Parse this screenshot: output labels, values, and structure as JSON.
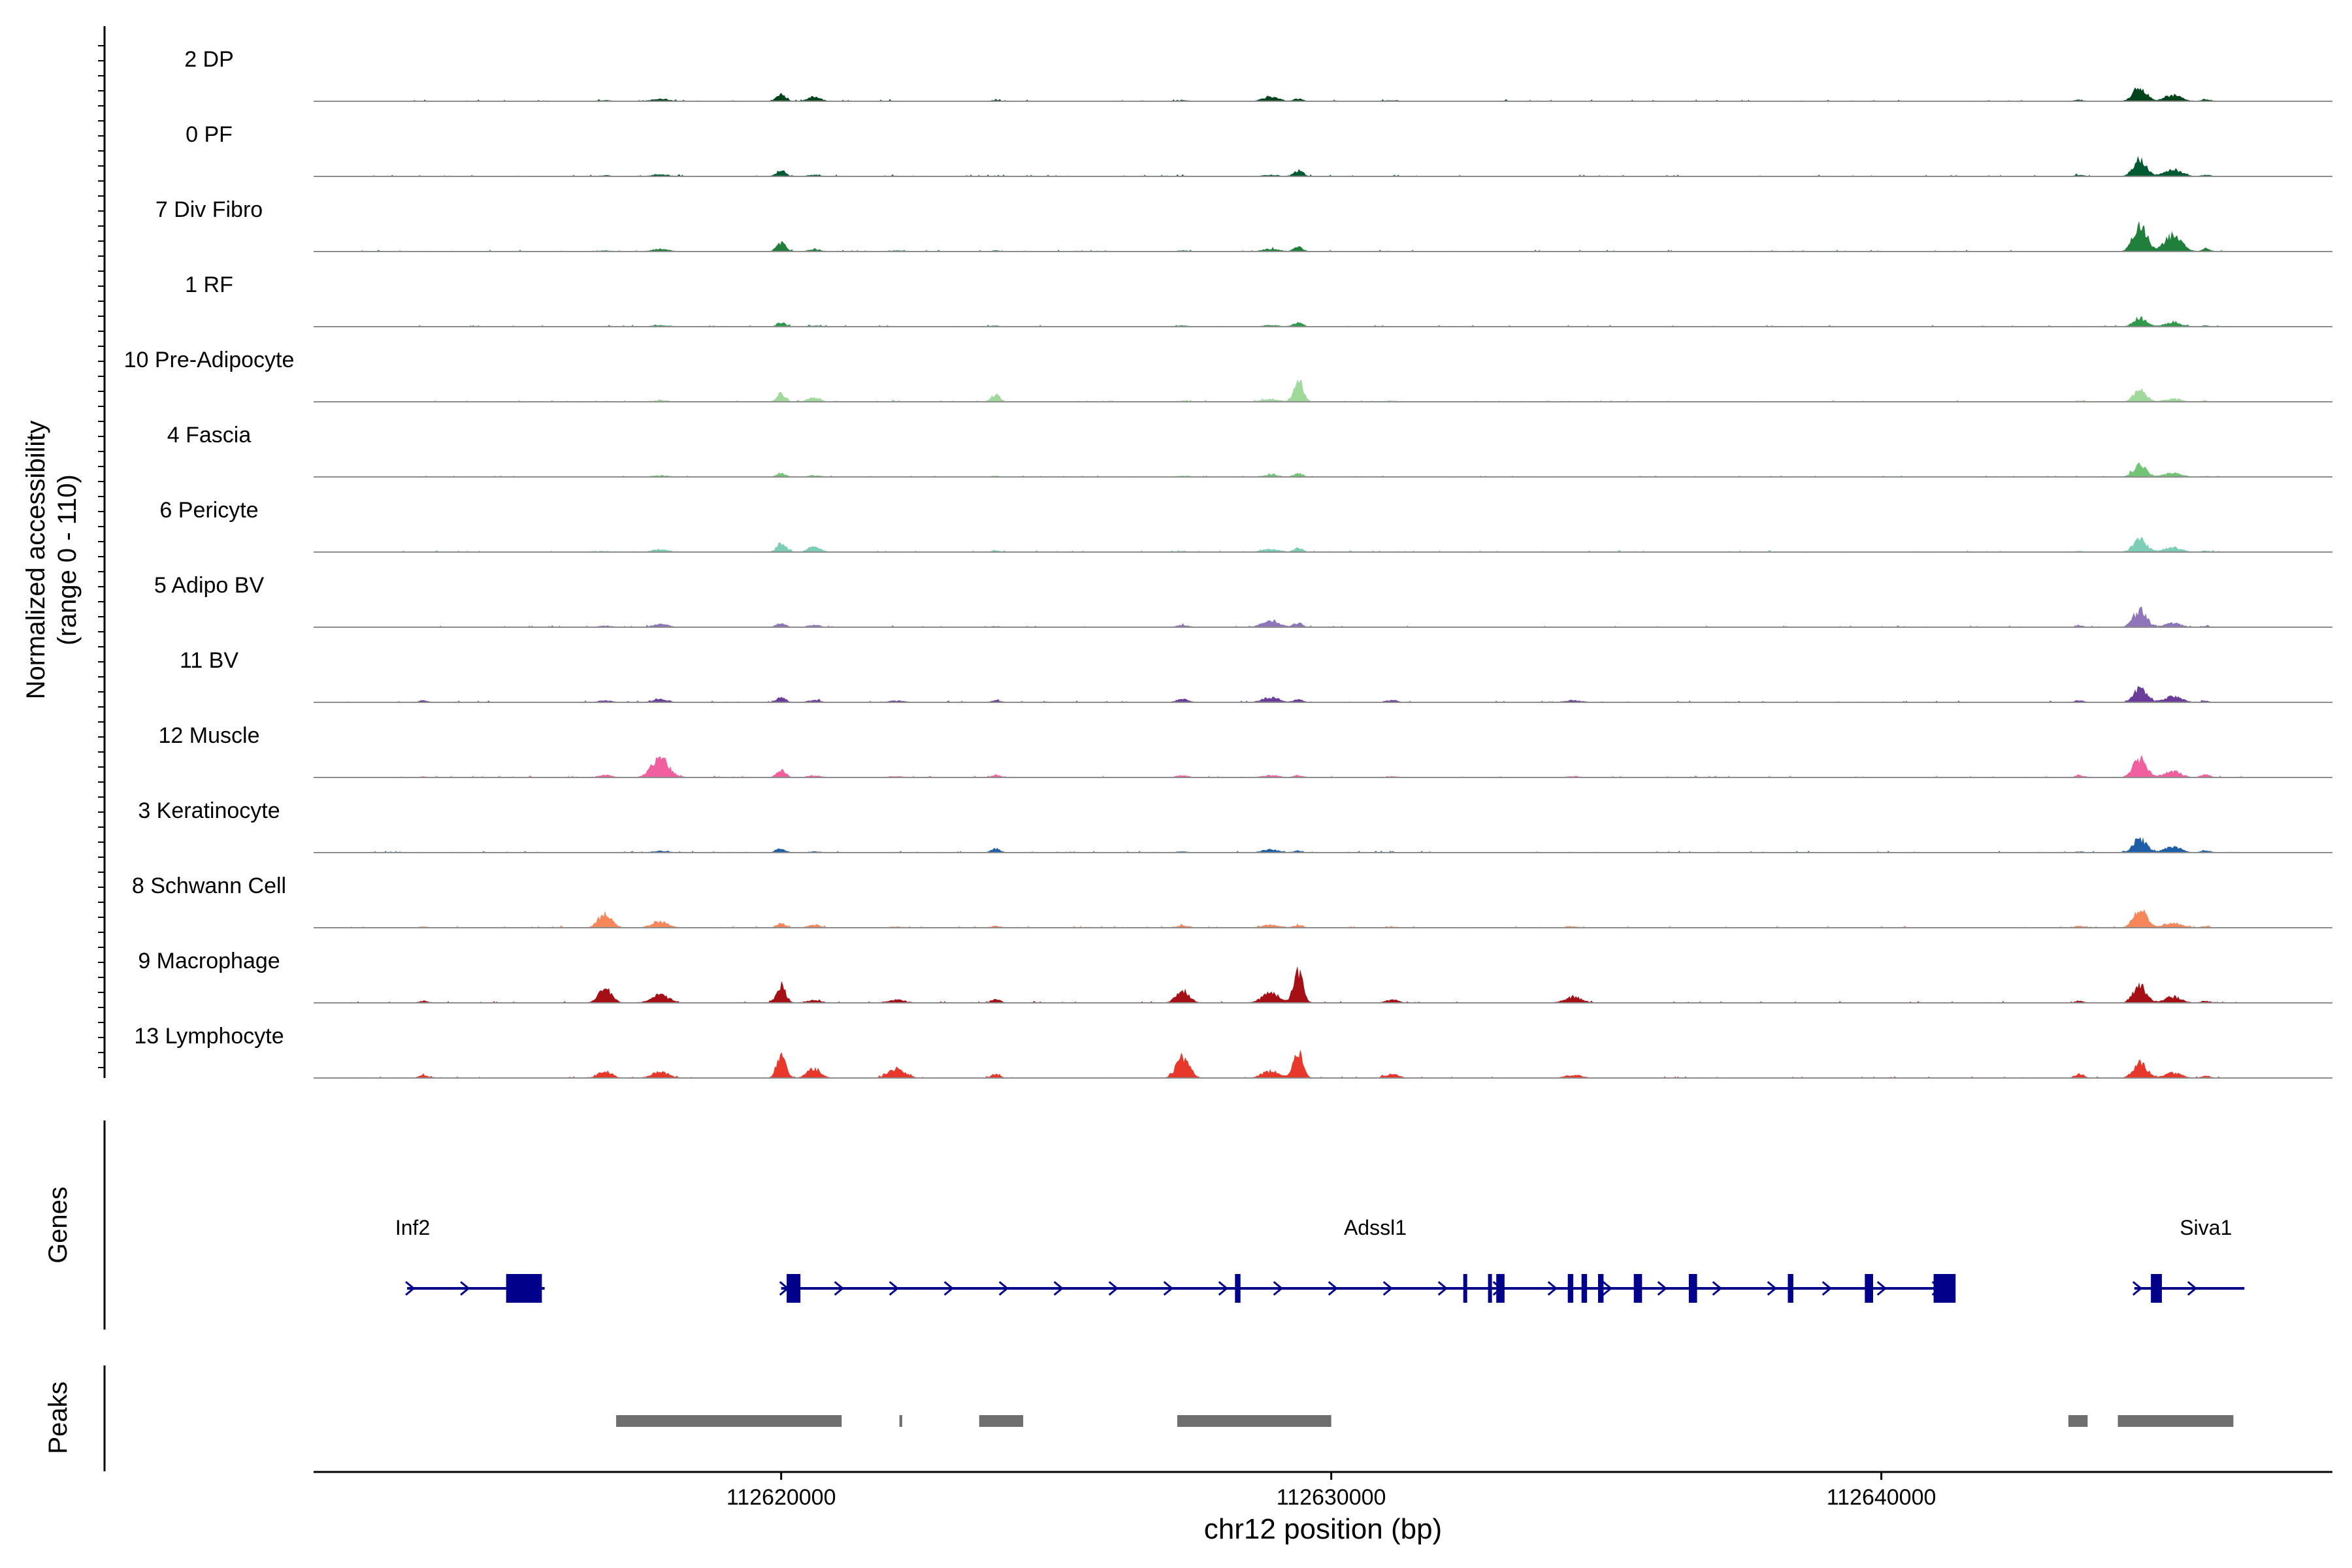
{
  "chart_data": {
    "type": "area",
    "title": "",
    "region": {
      "chrom": "chr12",
      "start": 112611500,
      "end": 112648200
    },
    "xlabel": "chr12 position (bp)",
    "xticks": [
      112620000,
      112630000,
      112640000
    ],
    "xtick_labels": [
      "112620000",
      "112630000",
      "112640000"
    ],
    "ylabel_lines": [
      "Normalized accessibility",
      "(range 0 - 110)"
    ],
    "yrange": [
      0,
      110
    ],
    "peak_centers": [
      112613500,
      112616800,
      112617800,
      112620000,
      112620600,
      112622100,
      112623900,
      112627300,
      112628900,
      112629400,
      112631100,
      112634400,
      112643600,
      112644700,
      112645300,
      112645900
    ],
    "series": [
      {
        "name": "2 DP",
        "color": "#00441b",
        "span": [
          112612500,
          112646800
        ],
        "values": [
          0,
          2,
          5,
          14,
          8,
          1,
          2,
          2,
          8,
          5,
          2,
          1,
          3,
          28,
          12,
          4
        ]
      },
      {
        "name": "0 PF",
        "color": "#005a32",
        "span": [
          112612500,
          112646800
        ],
        "values": [
          0,
          2,
          4,
          12,
          3,
          1,
          1,
          1,
          3,
          12,
          1,
          0,
          3,
          32,
          14,
          3
        ]
      },
      {
        "name": "7 Div Fibro",
        "color": "#1f7f3b",
        "span": [
          112612000,
          112646500
        ],
        "values": [
          1,
          2,
          5,
          18,
          4,
          2,
          2,
          2,
          5,
          9,
          1,
          0,
          1,
          55,
          32,
          5
        ]
      },
      {
        "name": "1 RF",
        "color": "#319a4a",
        "span": [
          112613000,
          112646400
        ],
        "values": [
          0,
          1,
          3,
          8,
          2,
          1,
          2,
          2,
          3,
          8,
          0,
          0,
          1,
          18,
          8,
          2
        ]
      },
      {
        "name": "10 Pre-Adipocyte",
        "color": "#a0d99b",
        "span": [
          112613000,
          112646200
        ],
        "values": [
          0,
          1,
          3,
          16,
          8,
          1,
          14,
          2,
          5,
          45,
          2,
          1,
          2,
          22,
          6,
          2
        ]
      },
      {
        "name": "4 Fascia",
        "color": "#74c476",
        "span": [
          112613000,
          112646400
        ],
        "values": [
          0,
          1,
          3,
          7,
          3,
          1,
          2,
          2,
          4,
          7,
          1,
          0,
          1,
          24,
          8,
          2
        ]
      },
      {
        "name": "6 Pericyte",
        "color": "#7ccdb6",
        "span": [
          112612800,
          112646300
        ],
        "values": [
          0,
          2,
          5,
          18,
          10,
          1,
          3,
          2,
          6,
          8,
          1,
          0,
          2,
          26,
          10,
          3
        ]
      },
      {
        "name": "5 Adipo BV",
        "color": "#8f76ba",
        "span": [
          112613000,
          112646000
        ],
        "values": [
          0,
          3,
          6,
          8,
          4,
          1,
          2,
          4,
          14,
          8,
          1,
          0,
          3,
          34,
          8,
          2
        ]
      },
      {
        "name": "11 BV",
        "color": "#6a3d9a",
        "span": [
          112612000,
          112646000
        ],
        "values": [
          4,
          4,
          6,
          10,
          4,
          3,
          4,
          6,
          10,
          6,
          4,
          4,
          4,
          28,
          12,
          3
        ]
      },
      {
        "name": "12 Muscle",
        "color": "#f0609e",
        "span": [
          112613000,
          112646600
        ],
        "values": [
          2,
          5,
          38,
          14,
          4,
          2,
          5,
          4,
          4,
          4,
          2,
          2,
          4,
          38,
          12,
          6
        ]
      },
      {
        "name": "3 Keratinocyte",
        "color": "#1f5fa8",
        "span": [
          112612500,
          112646600
        ],
        "values": [
          0,
          1,
          3,
          8,
          2,
          1,
          8,
          2,
          6,
          4,
          1,
          1,
          2,
          28,
          12,
          4
        ]
      },
      {
        "name": "8 Schwann Cell",
        "color": "#f7875a",
        "span": [
          112612000,
          112646500
        ],
        "values": [
          2,
          30,
          12,
          8,
          6,
          2,
          4,
          4,
          6,
          5,
          2,
          2,
          4,
          38,
          10,
          3
        ]
      },
      {
        "name": "9 Macrophage",
        "color": "#a50f15",
        "span": [
          112612000,
          112646500
        ],
        "values": [
          4,
          30,
          16,
          34,
          6,
          6,
          8,
          24,
          20,
          62,
          6,
          12,
          4,
          34,
          12,
          4
        ]
      },
      {
        "name": "13 Lymphocyte",
        "color": "#e8382b",
        "span": [
          112612000,
          112646300
        ],
        "values": [
          6,
          14,
          12,
          48,
          20,
          18,
          8,
          42,
          14,
          52,
          8,
          6,
          8,
          30,
          10,
          4
        ]
      }
    ],
    "genes": [
      {
        "name": "Inf2",
        "strand": "+",
        "start": 112613200,
        "end": 112615700,
        "label_pos": 112613300,
        "exons": [
          [
            112615000,
            112615650
          ]
        ]
      },
      {
        "name": "Adssl1",
        "strand": "+",
        "start": 112620000,
        "end": 112641200,
        "label_pos": 112630800,
        "exons": [
          [
            112620100,
            112620350
          ],
          [
            112628250,
            112628350
          ],
          [
            112632400,
            112632450
          ],
          [
            112632850,
            112632900
          ],
          [
            112633000,
            112633150
          ],
          [
            112634300,
            112634400
          ],
          [
            112634550,
            112634650
          ],
          [
            112634850,
            112634950
          ],
          [
            112635500,
            112635650
          ],
          [
            112636500,
            112636650
          ],
          [
            112638300,
            112638400
          ],
          [
            112639700,
            112639850
          ],
          [
            112640950,
            112641350
          ]
        ]
      },
      {
        "name": "Siva1",
        "strand": "+",
        "start": 112644600,
        "end": 112646600,
        "label_pos": 112645900,
        "exons": [
          [
            112644900,
            112645100
          ]
        ]
      }
    ],
    "peaks": [
      [
        112617000,
        112621100
      ],
      [
        112622150,
        112622200
      ],
      [
        112623600,
        112624400
      ],
      [
        112627200,
        112630000
      ],
      [
        112643400,
        112643750
      ],
      [
        112644300,
        112646400
      ]
    ],
    "gene_color": "#00008b",
    "peak_color": "#6e6e6e",
    "track_labels": {
      "genes": "Genes",
      "peaks": "Peaks"
    }
  }
}
